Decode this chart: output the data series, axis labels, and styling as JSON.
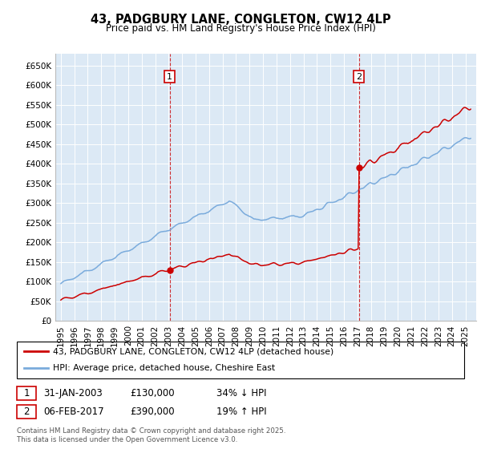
{
  "title": "43, PADGBURY LANE, CONGLETON, CW12 4LP",
  "subtitle": "Price paid vs. HM Land Registry's House Price Index (HPI)",
  "legend_line1": "43, PADGBURY LANE, CONGLETON, CW12 4LP (detached house)",
  "legend_line2": "HPI: Average price, detached house, Cheshire East",
  "footer": "Contains HM Land Registry data © Crown copyright and database right 2025.\nThis data is licensed under the Open Government Licence v3.0.",
  "sale1_date": "31-JAN-2003",
  "sale1_price": "£130,000",
  "sale1_hpi": "34% ↓ HPI",
  "sale2_date": "06-FEB-2017",
  "sale2_price": "£390,000",
  "sale2_hpi": "19% ↑ HPI",
  "ylabel_ticks": [
    "£0",
    "£50K",
    "£100K",
    "£150K",
    "£200K",
    "£250K",
    "£300K",
    "£350K",
    "£400K",
    "£450K",
    "£500K",
    "£550K",
    "£600K",
    "£650K"
  ],
  "ytick_values": [
    0,
    50000,
    100000,
    150000,
    200000,
    250000,
    300000,
    350000,
    400000,
    450000,
    500000,
    550000,
    600000,
    650000
  ],
  "ylim": [
    0,
    680000
  ],
  "red_color": "#cc0000",
  "blue_color": "#7aabdc",
  "bg_color": "#dce9f5",
  "sale1_x_year": 2003.08,
  "sale2_x_year": 2017.1,
  "sale1_price_val": 130000,
  "sale2_price_val": 390000,
  "xlim_left": 1994.6,
  "xlim_right": 2025.8
}
